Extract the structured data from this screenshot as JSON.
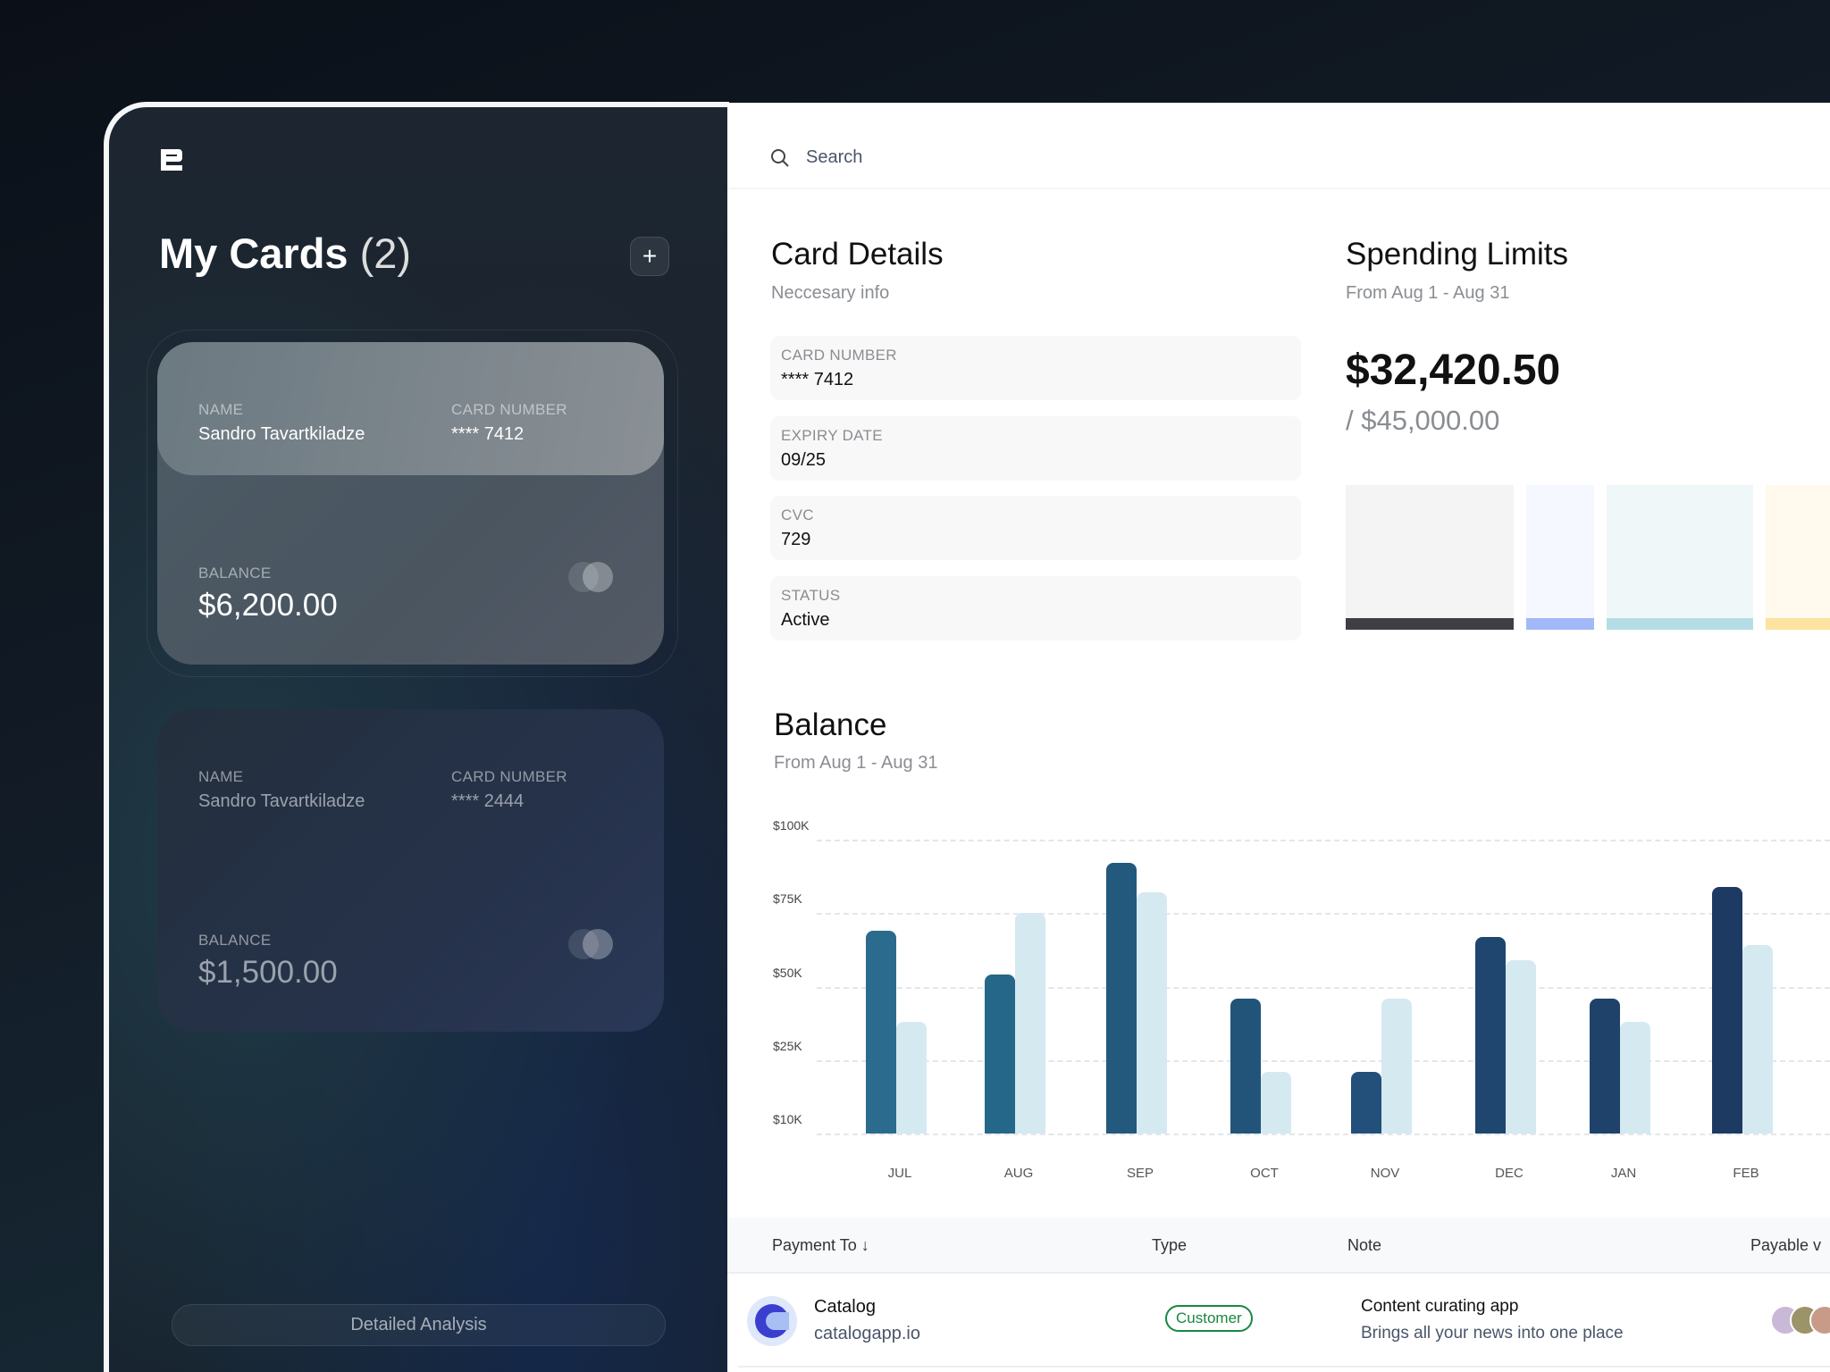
{
  "sidebar": {
    "title": "My Cards",
    "count": "(2)",
    "add_label": "+",
    "cards": [
      {
        "name_label": "NAME",
        "name": "Sandro Tavartkiladze",
        "number_label": "CARD NUMBER",
        "number": "**** 7412",
        "balance_label": "BALANCE",
        "balance": "$6,200.00"
      },
      {
        "name_label": "NAME",
        "name": "Sandro Tavartkiladze",
        "number_label": "CARD NUMBER",
        "number": "**** 2444",
        "balance_label": "BALANCE",
        "balance": "$1,500.00"
      }
    ],
    "analysis_button": "Detailed Analysis"
  },
  "search": {
    "placeholder": "Search"
  },
  "card_details": {
    "title": "Card Details",
    "subtitle": "Neccesary info",
    "fields": [
      {
        "label": "CARD NUMBER",
        "value": "**** 7412"
      },
      {
        "label": "EXPIRY DATE",
        "value": "09/25"
      },
      {
        "label": "CVC",
        "value": "729"
      },
      {
        "label": "STATUS",
        "value": "Active"
      }
    ]
  },
  "spending": {
    "title": "Spending Limits",
    "subtitle": "From Aug 1 - Aug 31",
    "spent": "$32,420.50",
    "limit": "/ $45,000.00",
    "segments": [
      {
        "color": "#3d3f44",
        "bg": "#f4f4f4"
      },
      {
        "color": "#a3b8f8",
        "bg": "#f5f8ff"
      },
      {
        "color": "#b4dde5",
        "bg": "#f0f7f9"
      },
      {
        "color": "#fde2a0",
        "bg": "#fff9ee"
      }
    ]
  },
  "chart_data": {
    "type": "bar",
    "title": "Balance",
    "subtitle": "From Aug 1 - Aug 31",
    "categories": [
      "JUL",
      "AUG",
      "SEP",
      "OCT",
      "NOV",
      "DEC",
      "JAN",
      "FEB"
    ],
    "y_ticks": [
      "$100K",
      "$75K",
      "$50K",
      "$25K",
      "$10K"
    ],
    "series": [
      {
        "name": "dark",
        "values": [
          69,
          54,
          92,
          46,
          21,
          67,
          46,
          84
        ]
      },
      {
        "name": "light",
        "values": [
          38,
          75,
          82,
          21,
          46,
          59,
          38,
          64
        ]
      }
    ],
    "ylim": [
      0,
      100
    ],
    "grid": true
  },
  "table": {
    "headers": [
      "Payment To",
      "Type",
      "Note",
      "Payable v"
    ],
    "rows": [
      {
        "name": "Catalog",
        "domain": "catalogapp.io",
        "type": "Customer",
        "note_title": "Content curating app",
        "note_sub": "Brings all your news into one place"
      }
    ]
  }
}
